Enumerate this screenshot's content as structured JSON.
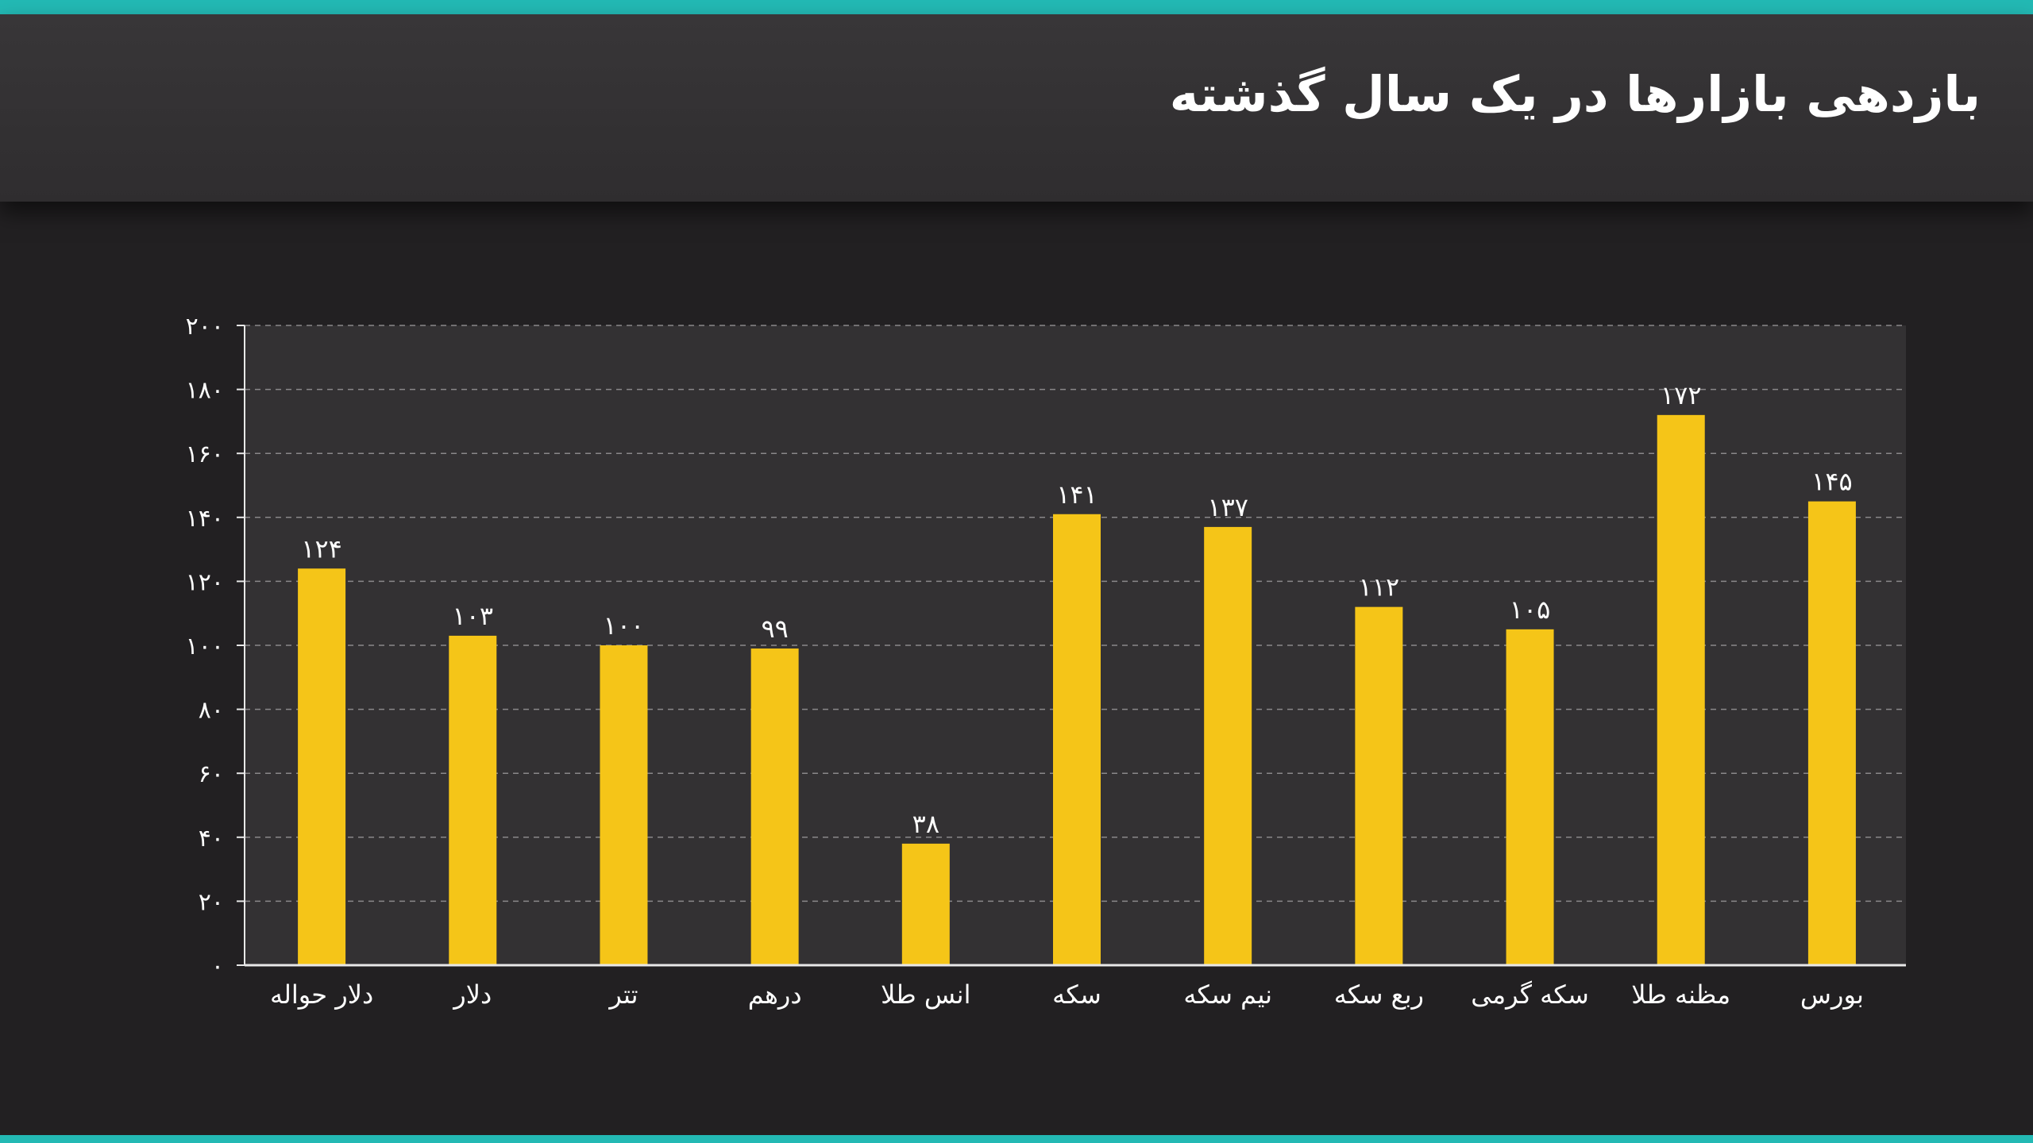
{
  "header": {
    "title": "بازدهی بازارها در یک سال گذشته"
  },
  "colors": {
    "accent_stripe": "#23b9b4",
    "bar": "#f5c518",
    "background": "#222022",
    "plot_background": "#333133"
  },
  "chart_data": {
    "type": "bar",
    "title": "بازدهی بازارها در یک سال گذشته",
    "xlabel": "",
    "ylabel": "",
    "ylim": [
      0,
      200
    ],
    "grid": true,
    "y_ticks": [
      0,
      20,
      40,
      60,
      80,
      100,
      120,
      140,
      160,
      180,
      200
    ],
    "y_tick_labels": [
      "۰",
      "۲۰",
      "۴۰",
      "۶۰",
      "۸۰",
      "۱۰۰",
      "۱۲۰",
      "۱۴۰",
      "۱۶۰",
      "۱۸۰",
      "۲۰۰"
    ],
    "categories": [
      "دلار حواله",
      "دلار",
      "تتر",
      "درهم",
      "انس طلا",
      "سکه",
      "نیم سکه",
      "ربع سکه",
      "سکه گرمی",
      "مظنه طلا",
      "بورس"
    ],
    "values": [
      124,
      103,
      100,
      99,
      38,
      141,
      137,
      112,
      105,
      172,
      145
    ],
    "value_labels": [
      "۱۲۴",
      "۱۰۳",
      "۱۰۰",
      "۹۹",
      "۳۸",
      "۱۴۱",
      "۱۳۷",
      "۱۱۲",
      "۱۰۵",
      "۱۷۲",
      "۱۴۵"
    ]
  }
}
